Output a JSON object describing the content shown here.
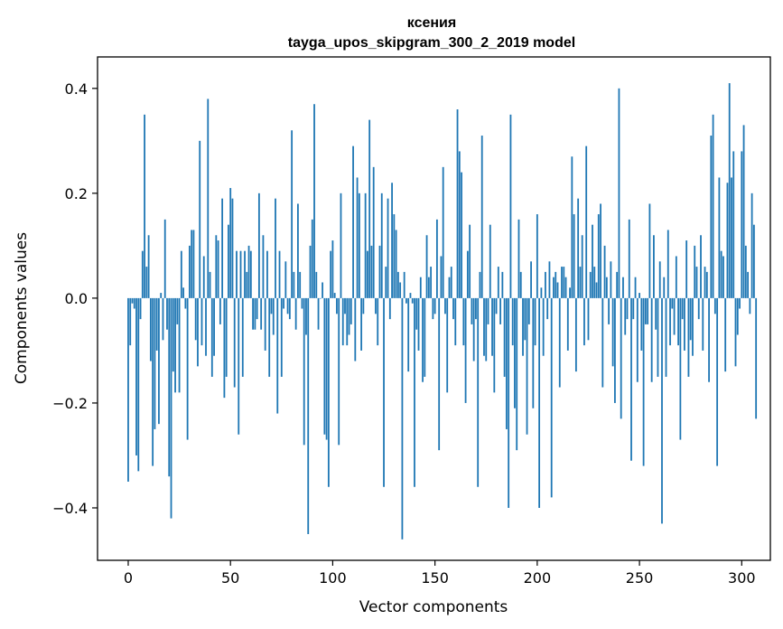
{
  "chart_data": {
    "type": "bar",
    "title": "ксения",
    "subtitle": "tayga_upos_skipgram_300_2_2019 model",
    "xlabel": "Vector components",
    "ylabel": "Components values",
    "xlim": [
      -15,
      314
    ],
    "ylim": [
      -0.5,
      0.46
    ],
    "x_ticks": [
      0,
      50,
      100,
      150,
      200,
      250,
      300
    ],
    "y_ticks": [
      -0.4,
      -0.2,
      0.0,
      0.2,
      0.4
    ],
    "x_tick_labels": [
      "0",
      "50",
      "100",
      "150",
      "200",
      "250",
      "300"
    ],
    "y_tick_labels": [
      "−0.4",
      "−0.2",
      "0.0",
      "0.2",
      "0.4"
    ],
    "series_color": "#1f77b4",
    "values": [
      -0.35,
      -0.09,
      -0.01,
      -0.02,
      -0.3,
      -0.33,
      -0.04,
      0.09,
      0.35,
      0.06,
      0.12,
      -0.12,
      -0.32,
      -0.25,
      -0.1,
      -0.24,
      0.01,
      -0.08,
      0.15,
      -0.06,
      -0.34,
      -0.42,
      -0.14,
      -0.18,
      -0.05,
      -0.18,
      0.09,
      0.02,
      -0.02,
      -0.27,
      0.1,
      0.13,
      0.13,
      -0.08,
      -0.13,
      0.3,
      -0.09,
      0.08,
      -0.11,
      0.38,
      0.05,
      -0.15,
      -0.11,
      0.12,
      0.11,
      -0.05,
      0.19,
      -0.19,
      -0.15,
      0.14,
      0.21,
      0.19,
      -0.17,
      0.09,
      -0.26,
      0.09,
      -0.15,
      0.09,
      0.05,
      0.1,
      0.09,
      -0.06,
      -0.06,
      -0.04,
      0.2,
      -0.06,
      0.12,
      -0.1,
      0.09,
      -0.15,
      -0.03,
      -0.07,
      0.19,
      -0.22,
      0.09,
      -0.15,
      -0.02,
      0.07,
      -0.03,
      -0.04,
      0.32,
      0.05,
      -0.06,
      0.18,
      0.05,
      -0.02,
      -0.28,
      -0.07,
      -0.45,
      0.1,
      0.15,
      0.37,
      0.05,
      -0.06,
      0.0,
      0.03,
      -0.26,
      -0.27,
      -0.36,
      0.09,
      0.11,
      0.01,
      -0.03,
      -0.28,
      0.2,
      -0.09,
      -0.03,
      -0.09,
      -0.07,
      -0.05,
      0.29,
      -0.12,
      0.23,
      0.2,
      -0.1,
      -0.03,
      0.2,
      0.09,
      0.34,
      0.1,
      0.25,
      -0.03,
      -0.09,
      0.1,
      0.2,
      -0.36,
      0.06,
      0.19,
      -0.04,
      0.22,
      0.16,
      0.13,
      0.05,
      0.03,
      -0.46,
      0.05,
      -0.01,
      -0.14,
      0.01,
      -0.01,
      -0.36,
      -0.06,
      -0.1,
      0.04,
      -0.16,
      -0.15,
      0.12,
      0.04,
      0.06,
      -0.04,
      -0.03,
      0.15,
      -0.29,
      0.08,
      0.25,
      -0.03,
      -0.18,
      0.04,
      0.06,
      -0.04,
      -0.09,
      0.36,
      0.28,
      0.24,
      -0.09,
      -0.2,
      0.09,
      0.14,
      -0.05,
      -0.12,
      -0.04,
      -0.36,
      0.05,
      0.31,
      -0.11,
      -0.12,
      -0.05,
      0.14,
      -0.11,
      -0.18,
      -0.03,
      0.06,
      -0.05,
      0.05,
      -0.15,
      -0.25,
      -0.4,
      0.35,
      -0.09,
      -0.21,
      -0.29,
      0.15,
      0.05,
      -0.11,
      -0.08,
      -0.26,
      -0.05,
      0.07,
      -0.21,
      -0.09,
      0.16,
      -0.4,
      0.02,
      -0.11,
      0.05,
      -0.04,
      0.07,
      -0.38,
      0.04,
      0.05,
      0.03,
      -0.17,
      0.06,
      0.06,
      0.04,
      -0.1,
      0.02,
      0.27,
      0.16,
      -0.14,
      0.19,
      0.06,
      0.12,
      -0.09,
      0.29,
      -0.08,
      0.05,
      0.14,
      0.06,
      0.03,
      0.16,
      0.18,
      -0.17,
      0.1,
      0.04,
      -0.05,
      0.07,
      -0.13,
      -0.2,
      0.05,
      0.4,
      -0.23,
      0.04,
      -0.07,
      -0.04,
      0.15,
      -0.31,
      -0.04,
      0.04,
      -0.16,
      0.01,
      -0.1,
      -0.32,
      -0.05,
      -0.05,
      0.18,
      -0.16,
      0.12,
      -0.06,
      -0.15,
      0.07,
      -0.43,
      0.04,
      -0.15,
      0.13,
      -0.09,
      -0.02,
      -0.07,
      0.08,
      -0.09,
      -0.27,
      -0.04,
      -0.1,
      0.11,
      -0.15,
      -0.08,
      -0.11,
      0.1,
      0.06,
      -0.04,
      0.12,
      -0.1,
      0.06,
      0.05,
      -0.16,
      0.31,
      0.35,
      -0.03,
      -0.32,
      0.23,
      0.09,
      0.08,
      -0.14,
      0.22,
      0.41,
      0.23,
      0.28,
      -0.13,
      -0.07,
      -0.02,
      0.28,
      0.33,
      0.1,
      0.05,
      -0.03,
      0.2,
      0.14,
      -0.23
    ]
  }
}
